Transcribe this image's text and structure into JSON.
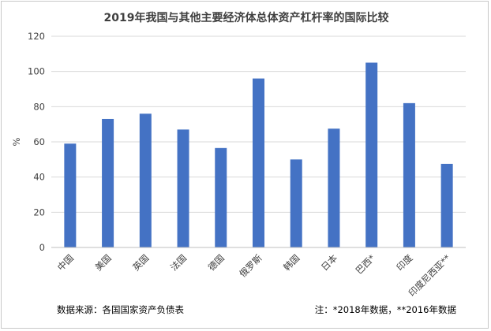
{
  "chart_data": {
    "type": "bar",
    "title": "2019年我国与其他主要经济体总体资产杠杆率的国际比较",
    "xlabel": "",
    "ylabel": "%",
    "ylim": [
      0,
      120
    ],
    "yticks": [
      "0",
      "20",
      "40",
      "60",
      "80",
      "100",
      "120"
    ],
    "categories": [
      "中国",
      "美国",
      "英国",
      "法国",
      "德国",
      "俄罗斯",
      "韩国",
      "日本",
      "巴西*",
      "印度",
      "印度尼西亚**"
    ],
    "values": [
      59,
      73,
      76,
      67,
      56.5,
      96,
      50,
      67.5,
      105,
      82,
      47.5
    ],
    "bar_color": "#4472c4",
    "grid": true,
    "legend": "none"
  },
  "footnotes": {
    "source": "数据来源：各国国家资产负债表",
    "note": "注：*2018年数据，**2016年数据"
  }
}
